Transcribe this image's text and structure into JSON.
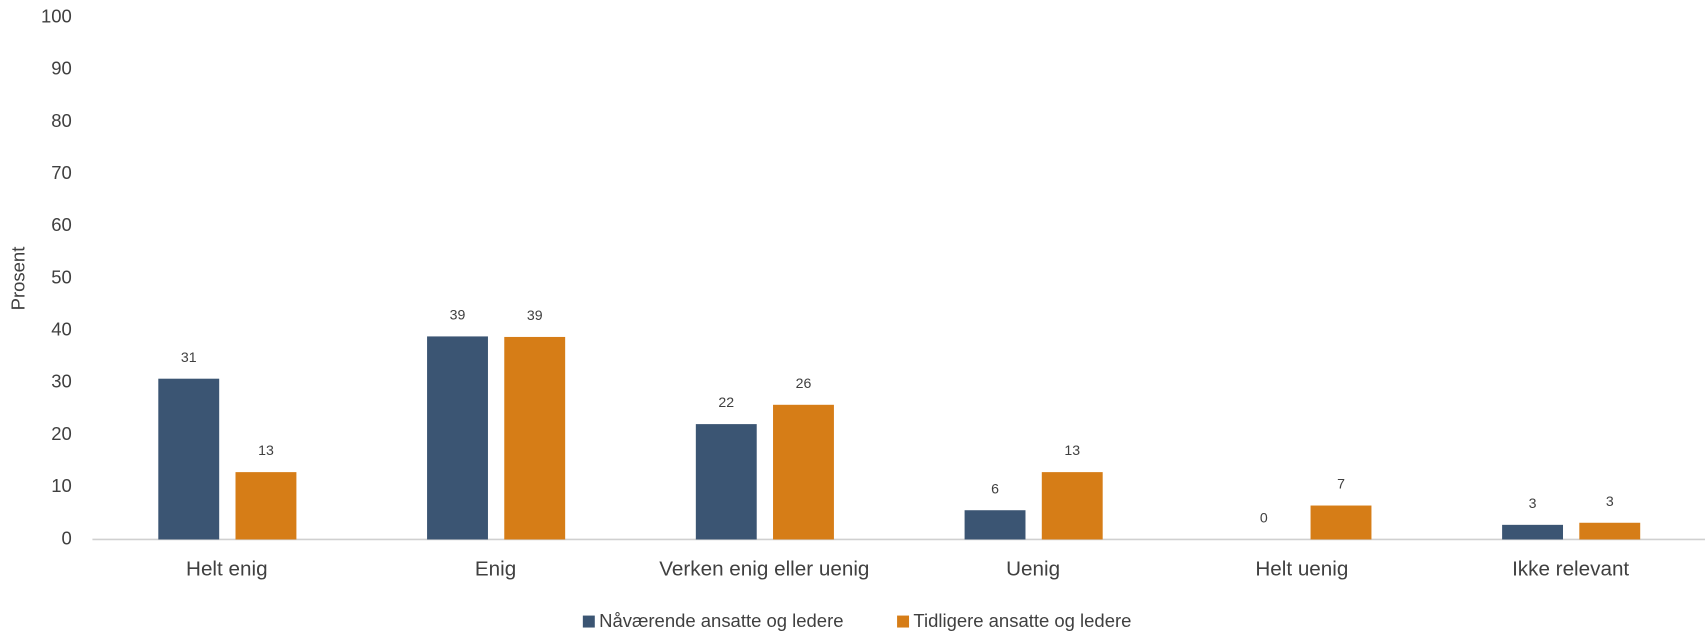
{
  "chart_data": {
    "type": "bar",
    "y_label": "Prosent",
    "categories": [
      "Helt enig",
      "Enig",
      "Verken enig eller uenig",
      "Uenig",
      "Helt uenig",
      "Ikke relevant"
    ],
    "series": [
      {
        "name": "Nåværende ansatte og ledere",
        "color": "#3b5573",
        "values": [
          30.8,
          38.9,
          22.1,
          5.6,
          0,
          2.8
        ],
        "value_labels": [
          "31",
          "39",
          "22",
          "6",
          "0",
          "3"
        ]
      },
      {
        "name": "Tidligere ansatte og ledere",
        "color": "#d67d17",
        "values": [
          12.9,
          38.8,
          25.8,
          12.9,
          6.5,
          3.2
        ],
        "value_labels": [
          "13",
          "39",
          "26",
          "13",
          "7",
          "3"
        ]
      }
    ],
    "ylim": [
      0,
      100
    ],
    "yticks": [
      0,
      10,
      20,
      30,
      40,
      50,
      60,
      70,
      80,
      90,
      100
    ],
    "grid": false,
    "legend": "bottom"
  }
}
